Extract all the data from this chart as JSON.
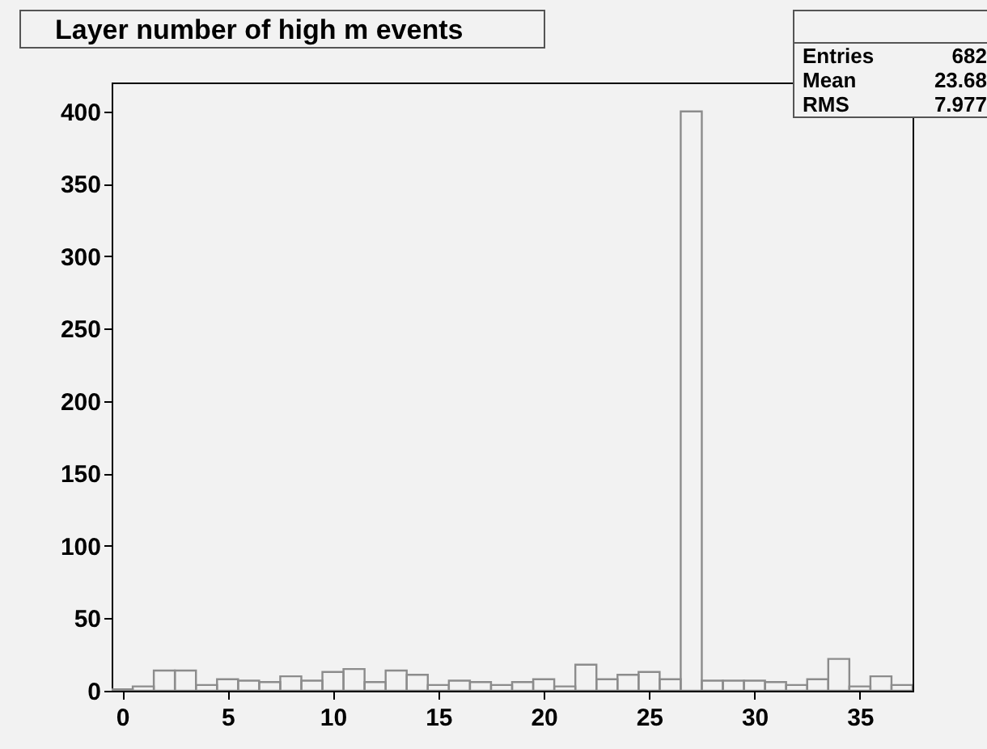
{
  "chart_data": {
    "type": "histogram",
    "title": "Layer number of high m events",
    "bins": [
      -0.5,
      0.5,
      1.5,
      2.5,
      3.5,
      4.5,
      5.5,
      6.5,
      7.5,
      8.5,
      9.5,
      10.5,
      11.5,
      12.5,
      13.5,
      14.5,
      15.5,
      16.5,
      17.5,
      18.5,
      19.5,
      20.5,
      21.5,
      22.5,
      23.5,
      24.5,
      25.5,
      26.5,
      27.5,
      28.5,
      29.5,
      30.5,
      31.5,
      32.5,
      33.5,
      34.5,
      35.5,
      36.5,
      37.5
    ],
    "values": [
      1,
      3,
      14,
      14,
      4,
      8,
      7,
      6,
      10,
      7,
      13,
      15,
      6,
      14,
      11,
      4,
      7,
      6,
      4,
      6,
      8,
      3,
      18,
      8,
      11,
      13,
      8,
      400,
      7,
      7,
      7,
      6,
      4,
      8,
      22,
      3,
      10,
      4
    ],
    "color": "#8c8c8c",
    "xlim": [
      -0.5,
      37.5
    ],
    "ylim": [
      0,
      420
    ],
    "xticks": [
      0,
      5,
      10,
      15,
      20,
      25,
      30,
      35
    ],
    "yticks": [
      0,
      50,
      100,
      150,
      200,
      250,
      300,
      350,
      400
    ],
    "grid": false,
    "annotations": [
      "Entries 682",
      "Mean 23.68",
      "RMS 7.977"
    ]
  }
}
